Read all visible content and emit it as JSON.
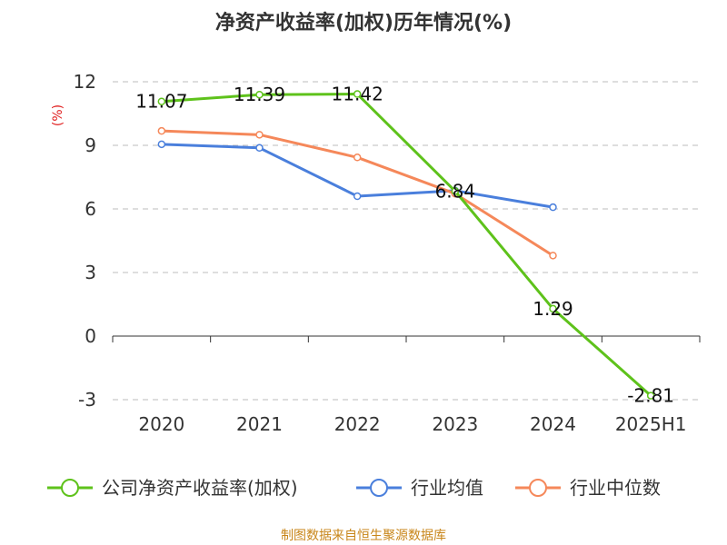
{
  "chart_data": {
    "type": "line",
    "title": "净资产收益率(加权)历年情况(%)",
    "ylabel": "(%)",
    "categories": [
      "2020",
      "2021",
      "2022",
      "2023",
      "2024",
      "2025H1"
    ],
    "ylim": [
      -3,
      12
    ],
    "yticks": [
      -3,
      0,
      3,
      6,
      9,
      12
    ],
    "grid": true,
    "legend_position": "bottom",
    "series": [
      {
        "name": "公司净资产收益率(加权)",
        "color": "#5ec21b",
        "values": [
          11.07,
          11.39,
          11.42,
          6.84,
          1.29,
          -2.81
        ],
        "labels": [
          "11.07",
          "11.39",
          "11.42",
          "6.84",
          "1.29",
          "-2.81"
        ]
      },
      {
        "name": "行业均值",
        "color": "#4a7fdc",
        "values": [
          9.05,
          8.88,
          6.6,
          6.86,
          6.08,
          null
        ]
      },
      {
        "name": "行业中位数",
        "color": "#f5885a",
        "values": [
          9.68,
          9.5,
          8.43,
          6.72,
          3.8,
          null
        ]
      }
    ],
    "source": "制图数据来自恒生聚源数据库"
  }
}
